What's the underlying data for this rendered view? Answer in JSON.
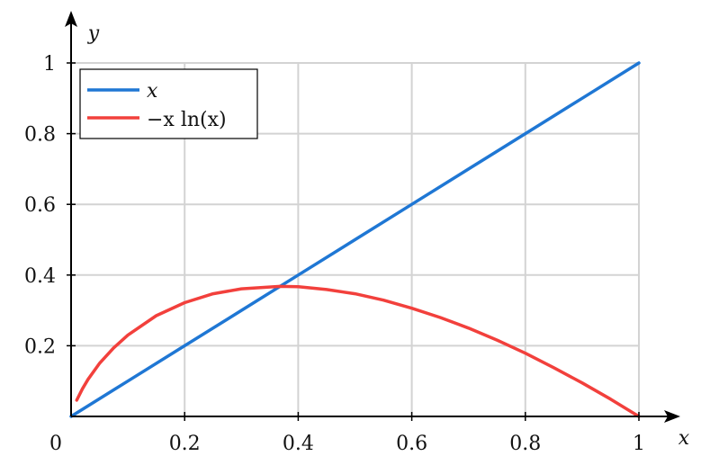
{
  "chart_data": {
    "type": "line",
    "xlabel": "x",
    "ylabel": "y",
    "xlim": [
      0,
      1
    ],
    "ylim": [
      0,
      1
    ],
    "origin_label": "0",
    "x_ticks": [
      {
        "value": 0.2,
        "label": "0.2"
      },
      {
        "value": 0.4,
        "label": "0.4"
      },
      {
        "value": 0.6,
        "label": "0.6"
      },
      {
        "value": 0.8,
        "label": "0.8"
      },
      {
        "value": 1.0,
        "label": "1"
      }
    ],
    "y_ticks": [
      {
        "value": 0.2,
        "label": "0.2"
      },
      {
        "value": 0.4,
        "label": "0.4"
      },
      {
        "value": 0.6,
        "label": "0.6"
      },
      {
        "value": 0.8,
        "label": "0.8"
      },
      {
        "value": 1.0,
        "label": "1"
      }
    ],
    "grid": true,
    "legend_position": "top-left",
    "series": [
      {
        "name": "x",
        "color": "#1f77d4",
        "x": [
          0,
          0.1,
          0.2,
          0.3,
          0.4,
          0.5,
          0.6,
          0.7,
          0.8,
          0.9,
          1.0
        ],
        "y": [
          0,
          0.1,
          0.2,
          0.3,
          0.4,
          0.5,
          0.6,
          0.7,
          0.8,
          0.9,
          1.0
        ]
      },
      {
        "name": "−x ln(x)",
        "color": "#f2403c",
        "x": [
          0.01,
          0.02,
          0.03,
          0.05,
          0.075,
          0.1,
          0.15,
          0.2,
          0.25,
          0.3,
          0.3679,
          0.4,
          0.45,
          0.5,
          0.55,
          0.6,
          0.65,
          0.7,
          0.75,
          0.8,
          0.85,
          0.9,
          0.95,
          1.0
        ],
        "y": [
          0.046,
          0.078,
          0.105,
          0.15,
          0.194,
          0.23,
          0.285,
          0.322,
          0.347,
          0.361,
          0.368,
          0.367,
          0.359,
          0.347,
          0.329,
          0.306,
          0.28,
          0.25,
          0.216,
          0.179,
          0.138,
          0.095,
          0.049,
          0.0
        ]
      }
    ]
  }
}
